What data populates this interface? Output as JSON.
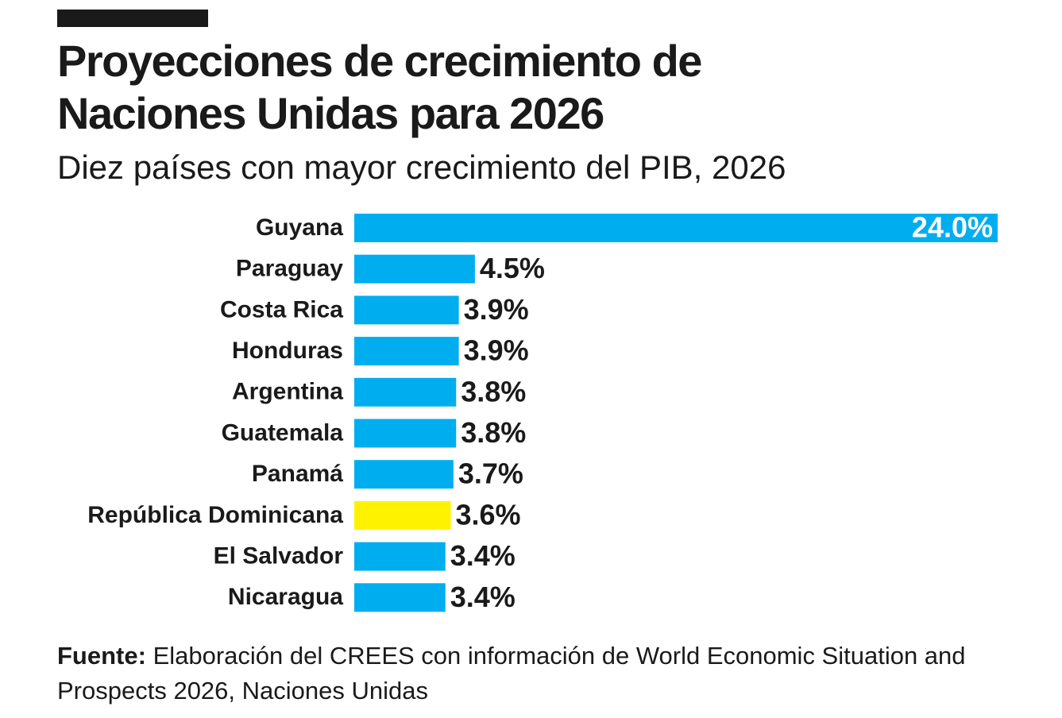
{
  "chart_data": {
    "type": "bar",
    "orientation": "horizontal",
    "title": "Proyecciones de crecimiento de Naciones Unidas para 2026",
    "subtitle": "Diez países con mayor crecimiento del PIB, 2026",
    "categories": [
      "Guyana",
      "Paraguay",
      "Costa Rica",
      "Honduras",
      "Argentina",
      "Guatemala",
      "Panamá",
      "República Dominicana",
      "El Salvador",
      "Nicaragua"
    ],
    "values": [
      24.0,
      4.5,
      3.9,
      3.9,
      3.8,
      3.8,
      3.7,
      3.6,
      3.4,
      3.4
    ],
    "value_labels": [
      "24.0%",
      "4.5%",
      "3.9%",
      "3.9%",
      "3.8%",
      "3.8%",
      "3.7%",
      "3.6%",
      "3.4%",
      "3.4%"
    ],
    "colors": [
      "#00aeef",
      "#00aeef",
      "#00aeef",
      "#00aeef",
      "#00aeef",
      "#00aeef",
      "#00aeef",
      "#fff200",
      "#00aeef",
      "#00aeef"
    ],
    "xlim": [
      0,
      24
    ],
    "source_label": "Fuente:",
    "source": "Elaboración del CREES con información de World Economic Situation and Prospects 2026, Naciones Unidas"
  }
}
